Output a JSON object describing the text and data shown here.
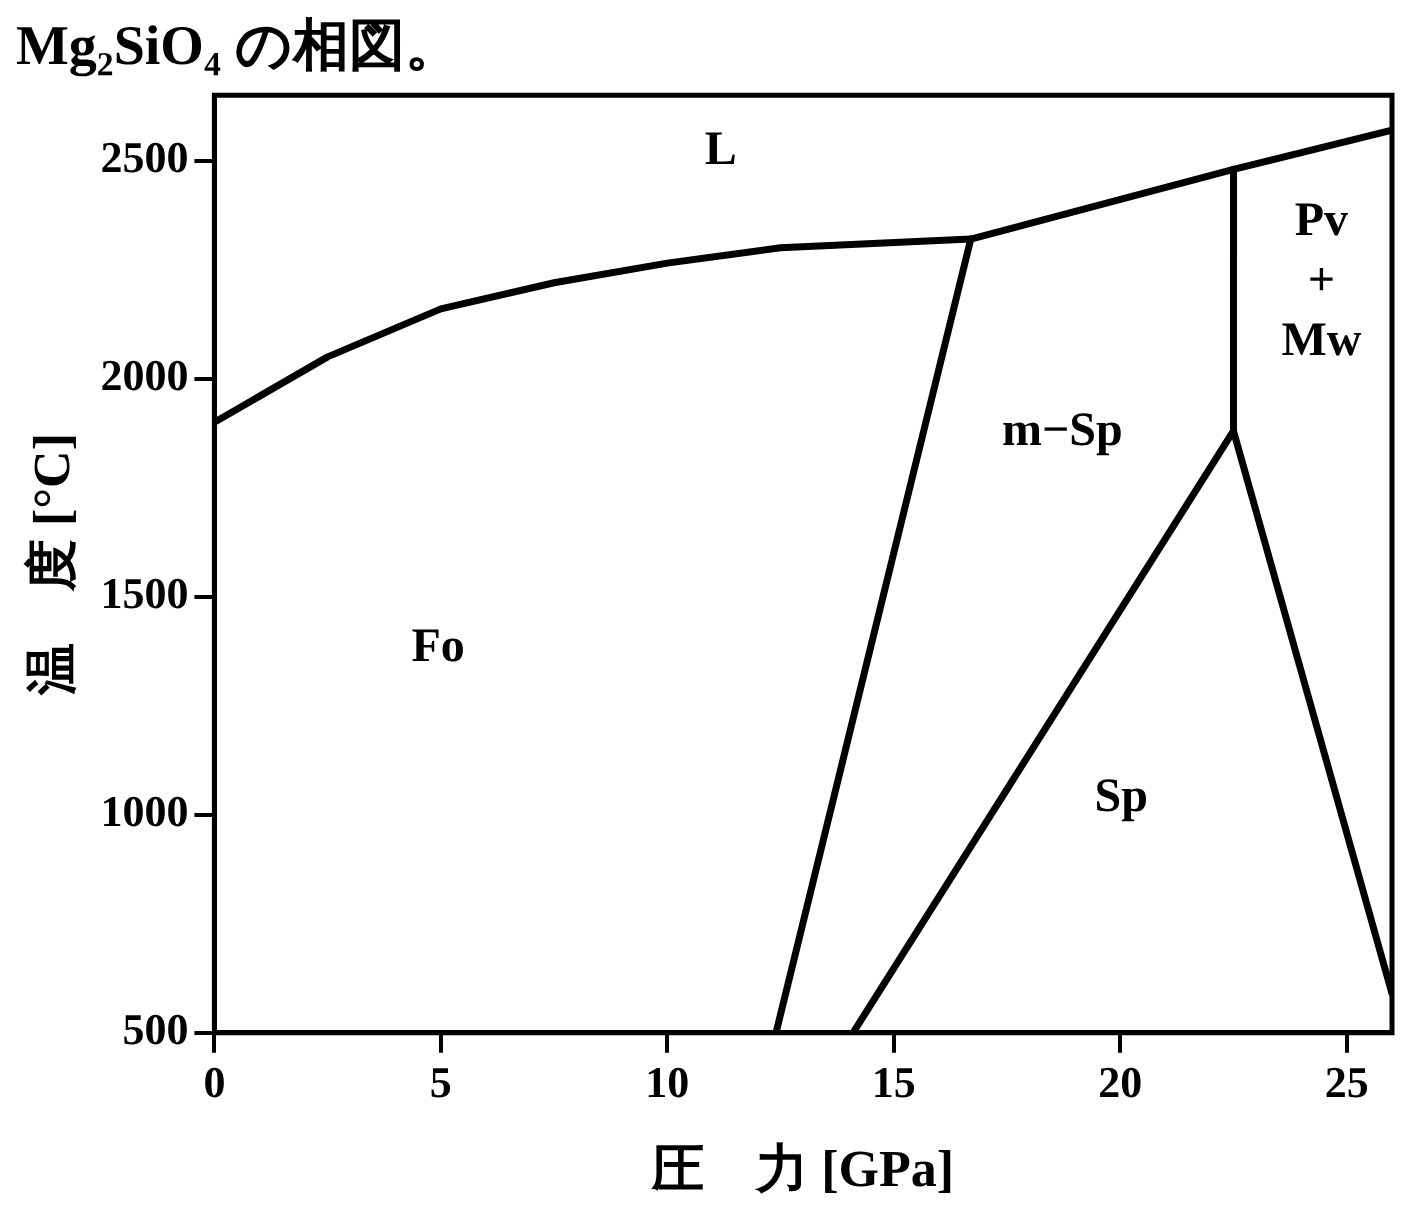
{
  "chart_data": {
    "type": "line",
    "title": "Mg₂SiO₄ の相図。",
    "xlabel": "圧　力 [GPa]",
    "ylabel": "温　度 [°C]",
    "xlim": [
      0,
      26
    ],
    "ylim": [
      500,
      2650
    ],
    "xticks": [
      0,
      5,
      10,
      15,
      20,
      25
    ],
    "yticks": [
      500,
      1000,
      1500,
      2000,
      2500
    ],
    "grid": false,
    "legend": false,
    "marker": "none",
    "line_style": "solid",
    "series": [
      {
        "type": "line",
        "color": "#000000",
        "x": [
          0,
          2.5,
          5,
          7.5,
          10,
          12.5,
          16.7,
          22.5,
          26
        ],
        "values": [
          1900,
          2050,
          2160,
          2220,
          2265,
          2300,
          2320,
          2480,
          2570
        ]
      },
      {
        "type": "line",
        "color": "#000000",
        "x": [
          12.4,
          16.7
        ],
        "values": [
          500,
          2320
        ]
      },
      {
        "type": "line",
        "color": "#000000",
        "x": [
          22.5,
          22.5,
          26
        ],
        "values": [
          2480,
          1880,
          590
        ]
      },
      {
        "type": "line",
        "color": "#000000",
        "x": [
          14.1,
          22.5
        ],
        "values": [
          500,
          1880
        ]
      }
    ],
    "annotations": [
      "L",
      "Fo",
      "m−Sp",
      "Sp",
      "Pv\n+\nMw"
    ]
  }
}
